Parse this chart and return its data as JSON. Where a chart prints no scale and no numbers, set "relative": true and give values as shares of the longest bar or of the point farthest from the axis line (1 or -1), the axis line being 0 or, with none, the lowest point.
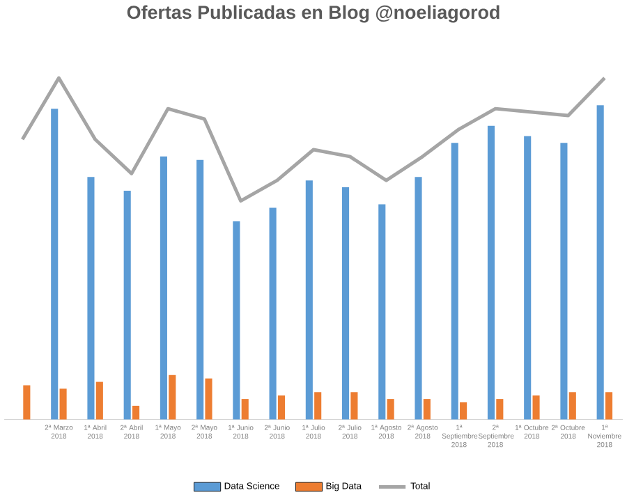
{
  "chart_data": {
    "type": "bar",
    "title": "Ofertas Publicadas en Blog @noeliagorod",
    "relative": true,
    "legend": "bottom",
    "categories": [
      null,
      "2ª Marzo 2018",
      "1ª Abril 2018",
      "2ª Abril 2018",
      "1ª Mayo 2018",
      "2ª Mayo 2018",
      "1ª Junio 2018",
      "2ª Junio 2018",
      "1ª Julio 2018",
      "2ª Julio 2018",
      "1ª Agosto 2018",
      "2ª Agosto 2018",
      "1ª Septiembre 2018",
      "2ª Septiembre 2018",
      "1ª Octubre 2018",
      "2ª Octubre 2018",
      "1ª Noviembre 2018"
    ],
    "series": [
      {
        "name": "Data Science",
        "color": "#5b9bd5",
        "values": [
          null,
          0.91,
          0.71,
          0.67,
          0.77,
          0.76,
          0.58,
          0.62,
          0.7,
          0.68,
          0.63,
          0.71,
          0.81,
          0.86,
          0.83,
          0.81,
          0.92
        ]
      },
      {
        "name": "Big Data",
        "color": "#ed7d31",
        "values": [
          0.1,
          0.09,
          0.11,
          0.04,
          0.13,
          0.12,
          0.06,
          0.07,
          0.08,
          0.08,
          0.06,
          0.06,
          0.05,
          0.06,
          0.07,
          0.08,
          0.08
        ]
      },
      {
        "name": "Total",
        "type": "line",
        "color": "#a5a5a5",
        "values": [
          0.82,
          1.0,
          0.82,
          0.72,
          0.91,
          0.88,
          0.64,
          0.7,
          0.79,
          0.77,
          0.7,
          0.77,
          0.85,
          0.91,
          0.9,
          0.89,
          1.0
        ]
      }
    ]
  }
}
